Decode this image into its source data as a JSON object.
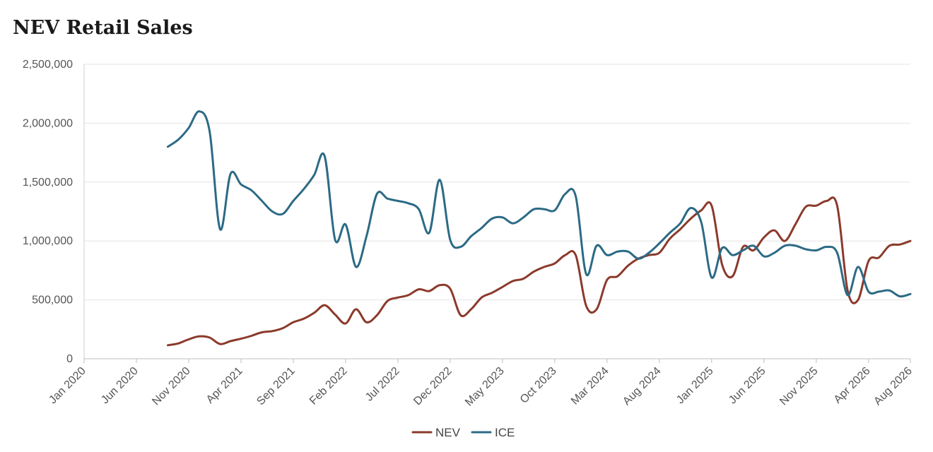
{
  "chart_data": {
    "type": "line",
    "title": "NEV Retail Sales",
    "xlabel": "",
    "ylabel": "",
    "ylim": [
      0,
      2500000
    ],
    "yticks": [
      0,
      500000,
      1000000,
      1500000,
      2000000,
      2500000
    ],
    "ytick_labels": [
      "0",
      "500,000",
      "1,000,000",
      "1,500,000",
      "2,000,000",
      "2,500,000"
    ],
    "xticks": [
      "Jan 2020",
      "Jun 2020",
      "Nov 2020",
      "Apr 2021",
      "Sep 2021",
      "Feb 2022",
      "Jul 2022",
      "Dec 2022",
      "May 2023",
      "Oct 2023",
      "Mar 2024",
      "Aug 2024",
      "Jan 2025",
      "Jun 2025",
      "Nov 2025",
      "Apr 2026",
      "Aug 2026"
    ],
    "x_range": [
      "2020-01",
      "2026-08"
    ],
    "grid": true,
    "legend": "bottom-center",
    "series": [
      {
        "name": "NEV",
        "color": "#8b3a2b",
        "points": [
          [
            "2020-09",
            115000
          ],
          [
            "2020-10",
            130000
          ],
          [
            "2020-11",
            165000
          ],
          [
            "2020-12",
            190000
          ],
          [
            "2021-01",
            180000
          ],
          [
            "2021-02",
            125000
          ],
          [
            "2021-03",
            150000
          ],
          [
            "2021-04",
            170000
          ],
          [
            "2021-05",
            195000
          ],
          [
            "2021-06",
            225000
          ],
          [
            "2021-07",
            235000
          ],
          [
            "2021-08",
            260000
          ],
          [
            "2021-09",
            310000
          ],
          [
            "2021-10",
            340000
          ],
          [
            "2021-11",
            390000
          ],
          [
            "2021-12",
            455000
          ],
          [
            "2022-01",
            375000
          ],
          [
            "2022-02",
            300000
          ],
          [
            "2022-03",
            420000
          ],
          [
            "2022-04",
            310000
          ],
          [
            "2022-05",
            370000
          ],
          [
            "2022-06",
            490000
          ],
          [
            "2022-07",
            520000
          ],
          [
            "2022-08",
            540000
          ],
          [
            "2022-09",
            590000
          ],
          [
            "2022-10",
            575000
          ],
          [
            "2022-11",
            625000
          ],
          [
            "2022-12",
            595000
          ],
          [
            "2023-01",
            370000
          ],
          [
            "2023-02",
            420000
          ],
          [
            "2023-03",
            520000
          ],
          [
            "2023-04",
            560000
          ],
          [
            "2023-05",
            610000
          ],
          [
            "2023-06",
            660000
          ],
          [
            "2023-07",
            680000
          ],
          [
            "2023-08",
            740000
          ],
          [
            "2023-09",
            780000
          ],
          [
            "2023-10",
            810000
          ],
          [
            "2023-11",
            880000
          ],
          [
            "2023-12",
            880000
          ],
          [
            "2024-01",
            450000
          ],
          [
            "2024-02",
            420000
          ],
          [
            "2024-03",
            670000
          ],
          [
            "2024-04",
            700000
          ],
          [
            "2024-05",
            790000
          ],
          [
            "2024-06",
            850000
          ],
          [
            "2024-07",
            880000
          ],
          [
            "2024-08",
            900000
          ],
          [
            "2024-09",
            1020000
          ],
          [
            "2024-10",
            1100000
          ],
          [
            "2024-11",
            1190000
          ],
          [
            "2024-12",
            1260000
          ],
          [
            "2025-01",
            1300000
          ],
          [
            "2025-02",
            800000
          ],
          [
            "2025-03",
            700000
          ],
          [
            "2025-04",
            950000
          ],
          [
            "2025-05",
            920000
          ],
          [
            "2025-06",
            1030000
          ],
          [
            "2025-07",
            1090000
          ],
          [
            "2025-08",
            1000000
          ],
          [
            "2025-09",
            1140000
          ],
          [
            "2025-10",
            1290000
          ],
          [
            "2025-11",
            1300000
          ],
          [
            "2025-12",
            1340000
          ],
          [
            "2026-01",
            1300000
          ],
          [
            "2026-02",
            580000
          ],
          [
            "2026-03",
            500000
          ],
          [
            "2026-04",
            830000
          ],
          [
            "2026-05",
            860000
          ],
          [
            "2026-06",
            960000
          ],
          [
            "2026-07",
            970000
          ],
          [
            "2026-08",
            1000000
          ]
        ]
      },
      {
        "name": "ICE",
        "color": "#2c6a85",
        "points": [
          [
            "2020-09",
            1800000
          ],
          [
            "2020-10",
            1860000
          ],
          [
            "2020-11",
            1960000
          ],
          [
            "2020-12",
            2100000
          ],
          [
            "2021-01",
            1930000
          ],
          [
            "2021-02",
            1100000
          ],
          [
            "2021-03",
            1570000
          ],
          [
            "2021-04",
            1480000
          ],
          [
            "2021-05",
            1430000
          ],
          [
            "2021-06",
            1340000
          ],
          [
            "2021-07",
            1250000
          ],
          [
            "2021-08",
            1230000
          ],
          [
            "2021-09",
            1340000
          ],
          [
            "2021-10",
            1440000
          ],
          [
            "2021-11",
            1560000
          ],
          [
            "2021-12",
            1720000
          ],
          [
            "2022-01",
            1010000
          ],
          [
            "2022-02",
            1140000
          ],
          [
            "2022-03",
            780000
          ],
          [
            "2022-04",
            1040000
          ],
          [
            "2022-05",
            1400000
          ],
          [
            "2022-06",
            1360000
          ],
          [
            "2022-07",
            1340000
          ],
          [
            "2022-08",
            1320000
          ],
          [
            "2022-09",
            1270000
          ],
          [
            "2022-10",
            1070000
          ],
          [
            "2022-11",
            1520000
          ],
          [
            "2022-12",
            1010000
          ],
          [
            "2023-01",
            950000
          ],
          [
            "2023-02",
            1040000
          ],
          [
            "2023-03",
            1110000
          ],
          [
            "2023-04",
            1190000
          ],
          [
            "2023-05",
            1200000
          ],
          [
            "2023-06",
            1150000
          ],
          [
            "2023-07",
            1200000
          ],
          [
            "2023-08",
            1270000
          ],
          [
            "2023-09",
            1270000
          ],
          [
            "2023-10",
            1260000
          ],
          [
            "2023-11",
            1400000
          ],
          [
            "2023-12",
            1380000
          ],
          [
            "2024-01",
            720000
          ],
          [
            "2024-02",
            960000
          ],
          [
            "2024-03",
            880000
          ],
          [
            "2024-04",
            910000
          ],
          [
            "2024-05",
            910000
          ],
          [
            "2024-06",
            850000
          ],
          [
            "2024-07",
            900000
          ],
          [
            "2024-08",
            980000
          ],
          [
            "2024-09",
            1070000
          ],
          [
            "2024-10",
            1150000
          ],
          [
            "2024-11",
            1280000
          ],
          [
            "2024-12",
            1160000
          ],
          [
            "2025-01",
            690000
          ],
          [
            "2025-02",
            940000
          ],
          [
            "2025-03",
            880000
          ],
          [
            "2025-04",
            920000
          ],
          [
            "2025-05",
            960000
          ],
          [
            "2025-06",
            870000
          ],
          [
            "2025-07",
            900000
          ],
          [
            "2025-08",
            960000
          ],
          [
            "2025-09",
            960000
          ],
          [
            "2025-10",
            930000
          ],
          [
            "2025-11",
            920000
          ],
          [
            "2025-12",
            950000
          ],
          [
            "2026-01",
            900000
          ],
          [
            "2026-02",
            540000
          ],
          [
            "2026-03",
            780000
          ],
          [
            "2026-04",
            570000
          ],
          [
            "2026-05",
            570000
          ],
          [
            "2026-06",
            580000
          ],
          [
            "2026-07",
            530000
          ],
          [
            "2026-08",
            550000
          ]
        ]
      }
    ]
  }
}
